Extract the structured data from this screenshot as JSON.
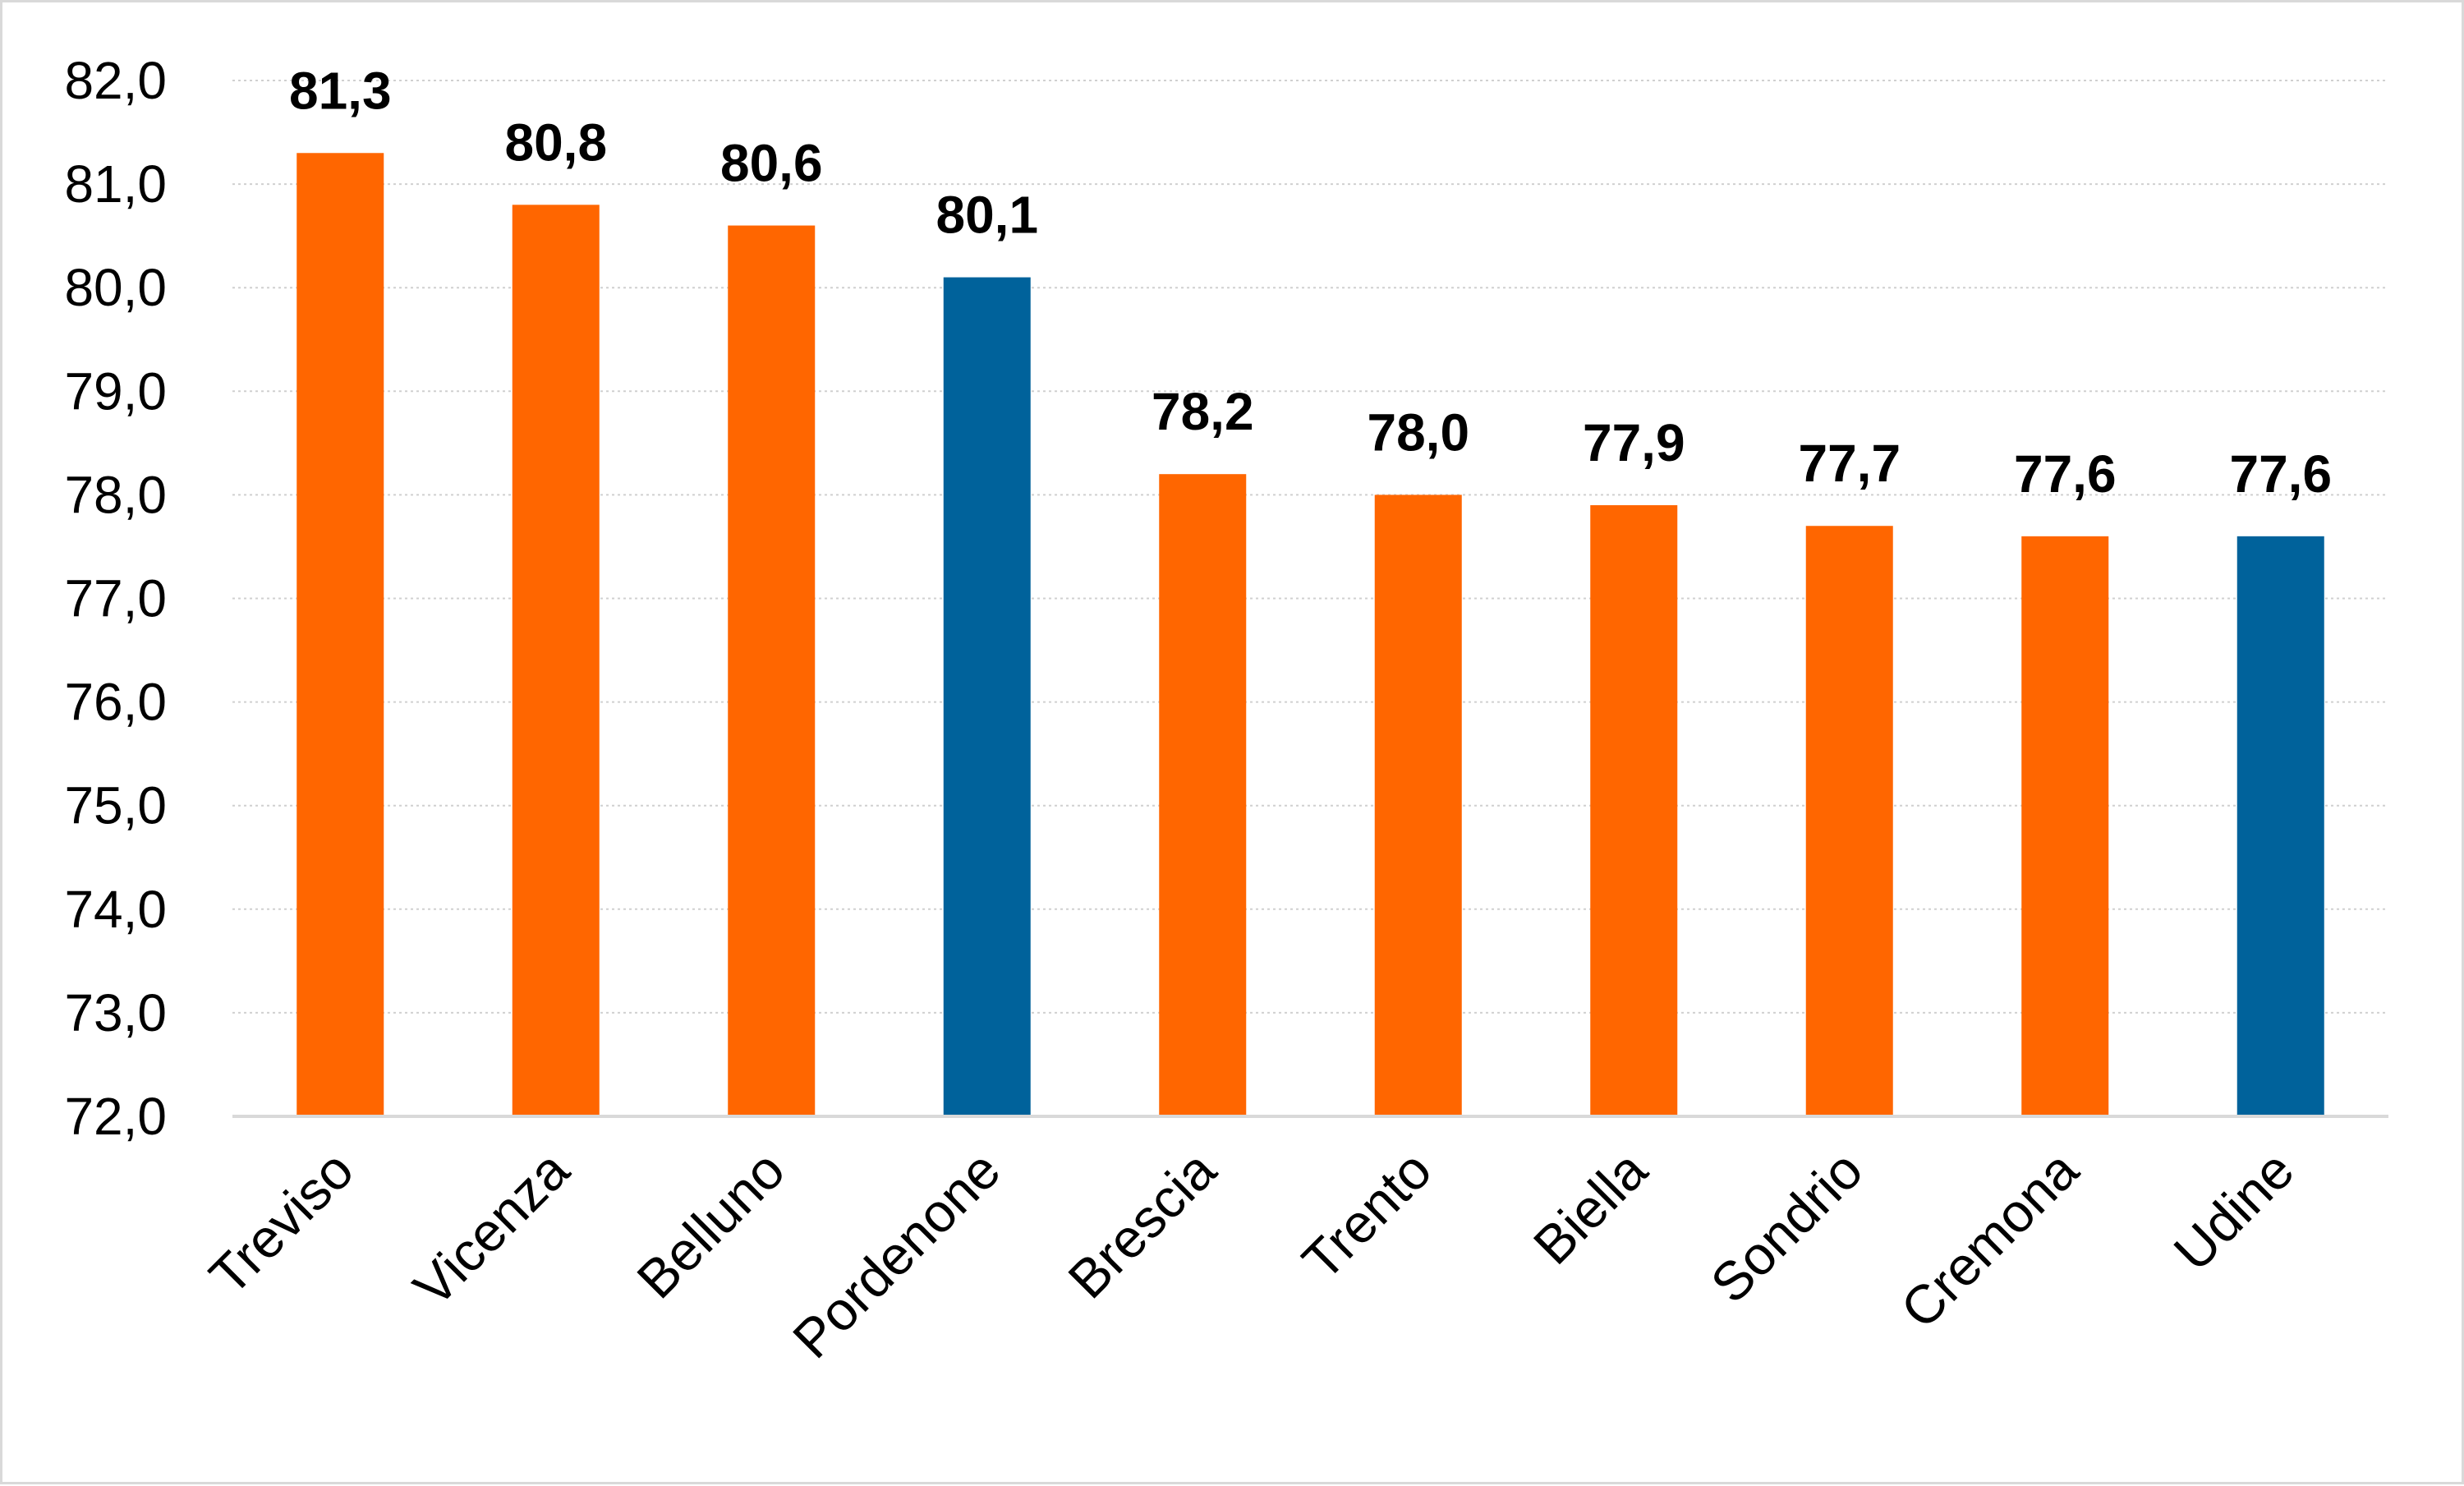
{
  "chart_data": {
    "type": "bar",
    "categories": [
      "Treviso",
      "Vicenza",
      "Belluno",
      "Pordenone",
      "Brescia",
      "Trento",
      "Biella",
      "Sondrio",
      "Cremona",
      "Udine"
    ],
    "values": [
      81.3,
      80.8,
      80.6,
      80.1,
      78.2,
      78.0,
      77.9,
      77.7,
      77.6,
      77.6
    ],
    "value_labels": [
      "81,3",
      "80,8",
      "80,6",
      "80,1",
      "78,2",
      "78,0",
      "77,9",
      "77,7",
      "77,6",
      "77,6"
    ],
    "bar_colors": [
      "#ff6600",
      "#ff6600",
      "#ff6600",
      "#00629b",
      "#ff6600",
      "#ff6600",
      "#ff6600",
      "#ff6600",
      "#ff6600",
      "#00629b"
    ],
    "ylim": [
      72.0,
      82.0
    ],
    "yticks": [
      "72,0",
      "73,0",
      "74,0",
      "75,0",
      "76,0",
      "77,0",
      "78,0",
      "79,0",
      "80,0",
      "81,0",
      "82,0"
    ],
    "title": "",
    "xlabel": "",
    "ylabel": "",
    "grid": "horizontal dotted",
    "legend": "none"
  }
}
